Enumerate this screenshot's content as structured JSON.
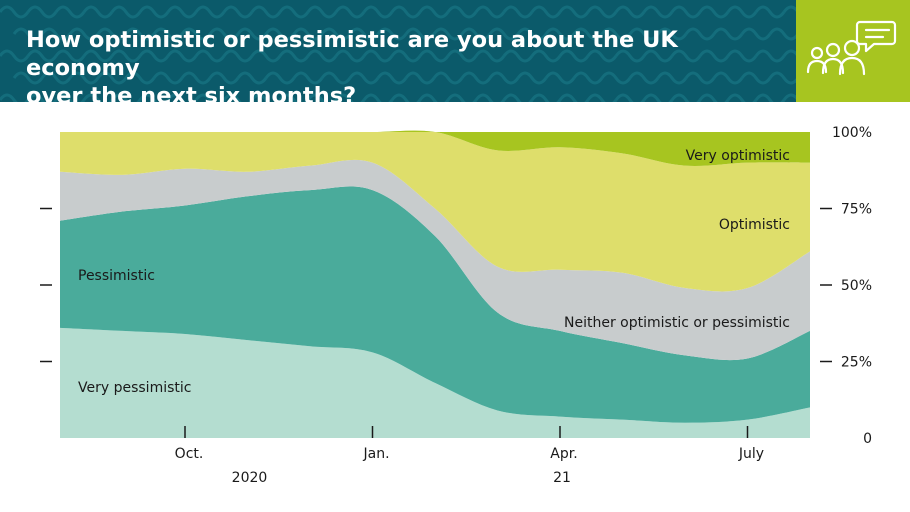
{
  "header": {
    "title_line1": "How optimistic or pessimistic are you about the UK economy",
    "title_line2": "over the next six months?",
    "icon": "people-speech-bubble-icon",
    "colors": {
      "header_bg": "#0b5a6a",
      "badge_bg": "#a7c520"
    }
  },
  "chart_data": {
    "type": "area",
    "stacked": true,
    "x": [
      "2020-08",
      "2020-09",
      "2020-10",
      "2020-11",
      "2020-12",
      "2021-01",
      "2021-02",
      "2021-03",
      "2021-04",
      "2021-05",
      "2021-06",
      "2021-07",
      "2021-08"
    ],
    "series": [
      {
        "name": "Very pessimistic",
        "color": "#b4ddd0",
        "values": [
          36,
          35,
          34,
          32,
          30,
          28,
          18,
          9,
          7,
          6,
          5,
          6,
          10
        ]
      },
      {
        "name": "Pessimistic",
        "color": "#4aab9b",
        "values": [
          35,
          39,
          42,
          47,
          51,
          53,
          48,
          32,
          28,
          25,
          22,
          20,
          25
        ]
      },
      {
        "name": "Neither optimistic or pessimistic",
        "color": "#c8cccd",
        "values": [
          16,
          12,
          12,
          8,
          8,
          9,
          9,
          15,
          20,
          23,
          22,
          23,
          26
        ]
      },
      {
        "name": "Optimistic",
        "color": "#dede6b",
        "values": [
          13,
          14,
          12,
          13,
          11,
          10,
          25,
          38,
          40,
          39,
          40,
          41,
          29
        ]
      },
      {
        "name": "Very optimistic",
        "color": "#a7c520",
        "values": [
          0,
          0,
          0,
          0,
          0,
          0,
          0,
          6,
          5,
          7,
          11,
          10,
          10
        ]
      }
    ],
    "xticks": [
      {
        "x": "2020-10",
        "label": "Oct."
      },
      {
        "x": "2021-01",
        "label": "Jan."
      },
      {
        "x": "2021-04",
        "label": "Apr."
      },
      {
        "x": "2021-07",
        "label": "July"
      }
    ],
    "year_labels": [
      {
        "x": "2020-11",
        "label": "2020"
      },
      {
        "x": "2021-04",
        "label": "21"
      }
    ],
    "yticks": [
      {
        "v": 0,
        "label": "0"
      },
      {
        "v": 25,
        "label": "25%"
      },
      {
        "v": 50,
        "label": "50%"
      },
      {
        "v": 75,
        "label": "75%"
      },
      {
        "v": 100,
        "label": "100%"
      }
    ],
    "ylim": [
      0,
      100
    ],
    "axis_position": "right",
    "grid": false,
    "legend": "inline labels"
  }
}
